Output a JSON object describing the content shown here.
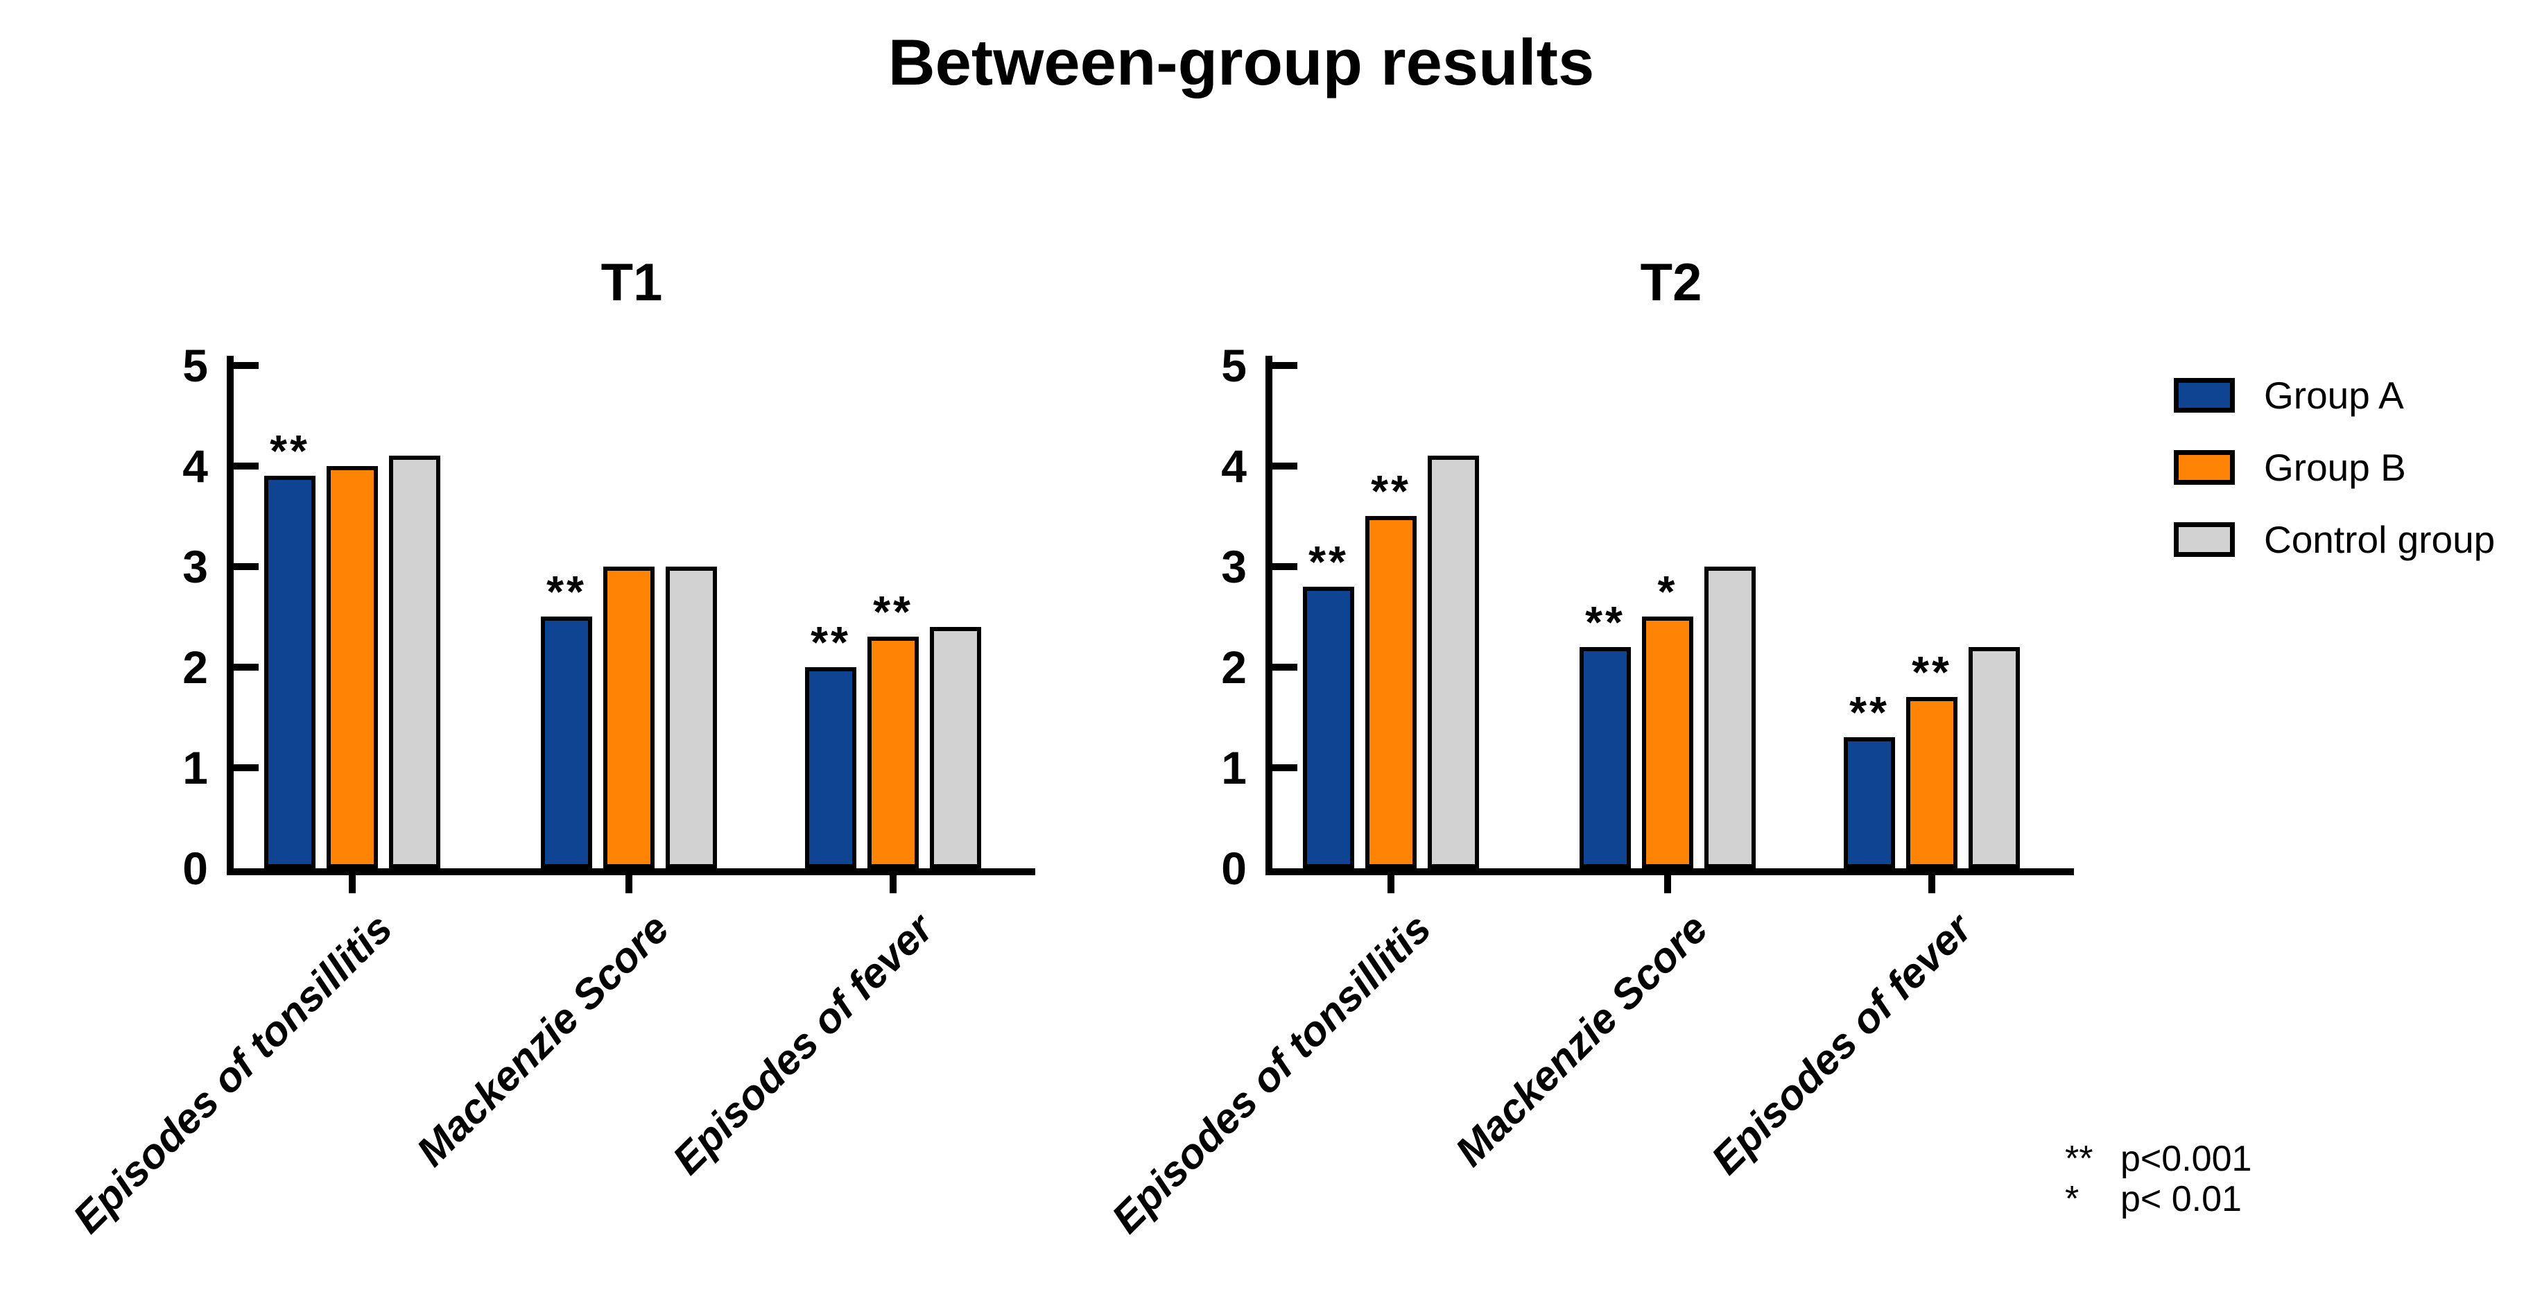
{
  "title": "Between-group results",
  "colors": {
    "group_a": "#0e4491",
    "group_b": "#ff8405",
    "control": "#d2d2d2",
    "outline": "#000000",
    "axis": "#000000"
  },
  "legend": [
    {
      "label": "Group A",
      "color_key": "group_a"
    },
    {
      "label": "Group B",
      "color_key": "group_b"
    },
    {
      "label": "Control group",
      "color_key": "control"
    }
  ],
  "footnotes": [
    {
      "symbol": "**",
      "text": "p<0.001"
    },
    {
      "symbol": "*",
      "text": "p< 0.01"
    }
  ],
  "chart_data": [
    {
      "type": "bar",
      "title": "T1",
      "categories": [
        "Episodes of tonsillitis",
        "Mackenzie Score",
        "Episodes of fever"
      ],
      "series": [
        {
          "name": "Group A",
          "color_key": "group_a",
          "values": [
            3.9,
            2.5,
            2.0
          ],
          "annotations": [
            "**",
            "**",
            "**"
          ]
        },
        {
          "name": "Group B",
          "color_key": "group_b",
          "values": [
            4.0,
            3.0,
            2.3
          ],
          "annotations": [
            "",
            "",
            "**"
          ]
        },
        {
          "name": "Control group",
          "color_key": "control",
          "values": [
            4.1,
            3.0,
            2.4
          ],
          "annotations": [
            "",
            "",
            ""
          ]
        }
      ],
      "xlabel": "",
      "ylabel": "",
      "ylim": [
        0,
        5
      ],
      "yticks": [
        0,
        1,
        2,
        3,
        4,
        5
      ],
      "grid": false,
      "legend_position": "right"
    },
    {
      "type": "bar",
      "title": "T2",
      "categories": [
        "Episodes of tonsillitis",
        "Mackenzie Score",
        "Episodes of fever"
      ],
      "series": [
        {
          "name": "Group A",
          "color_key": "group_a",
          "values": [
            2.8,
            2.2,
            1.3
          ],
          "annotations": [
            "**",
            "**",
            "**"
          ]
        },
        {
          "name": "Group B",
          "color_key": "group_b",
          "values": [
            3.5,
            2.5,
            1.7
          ],
          "annotations": [
            "**",
            "*",
            "**"
          ]
        },
        {
          "name": "Control group",
          "color_key": "control",
          "values": [
            4.1,
            3.0,
            2.2
          ],
          "annotations": [
            "",
            "",
            ""
          ]
        }
      ],
      "xlabel": "",
      "ylabel": "",
      "ylim": [
        0,
        5
      ],
      "yticks": [
        0,
        1,
        2,
        3,
        4,
        5
      ],
      "grid": false,
      "legend_position": "right"
    }
  ]
}
